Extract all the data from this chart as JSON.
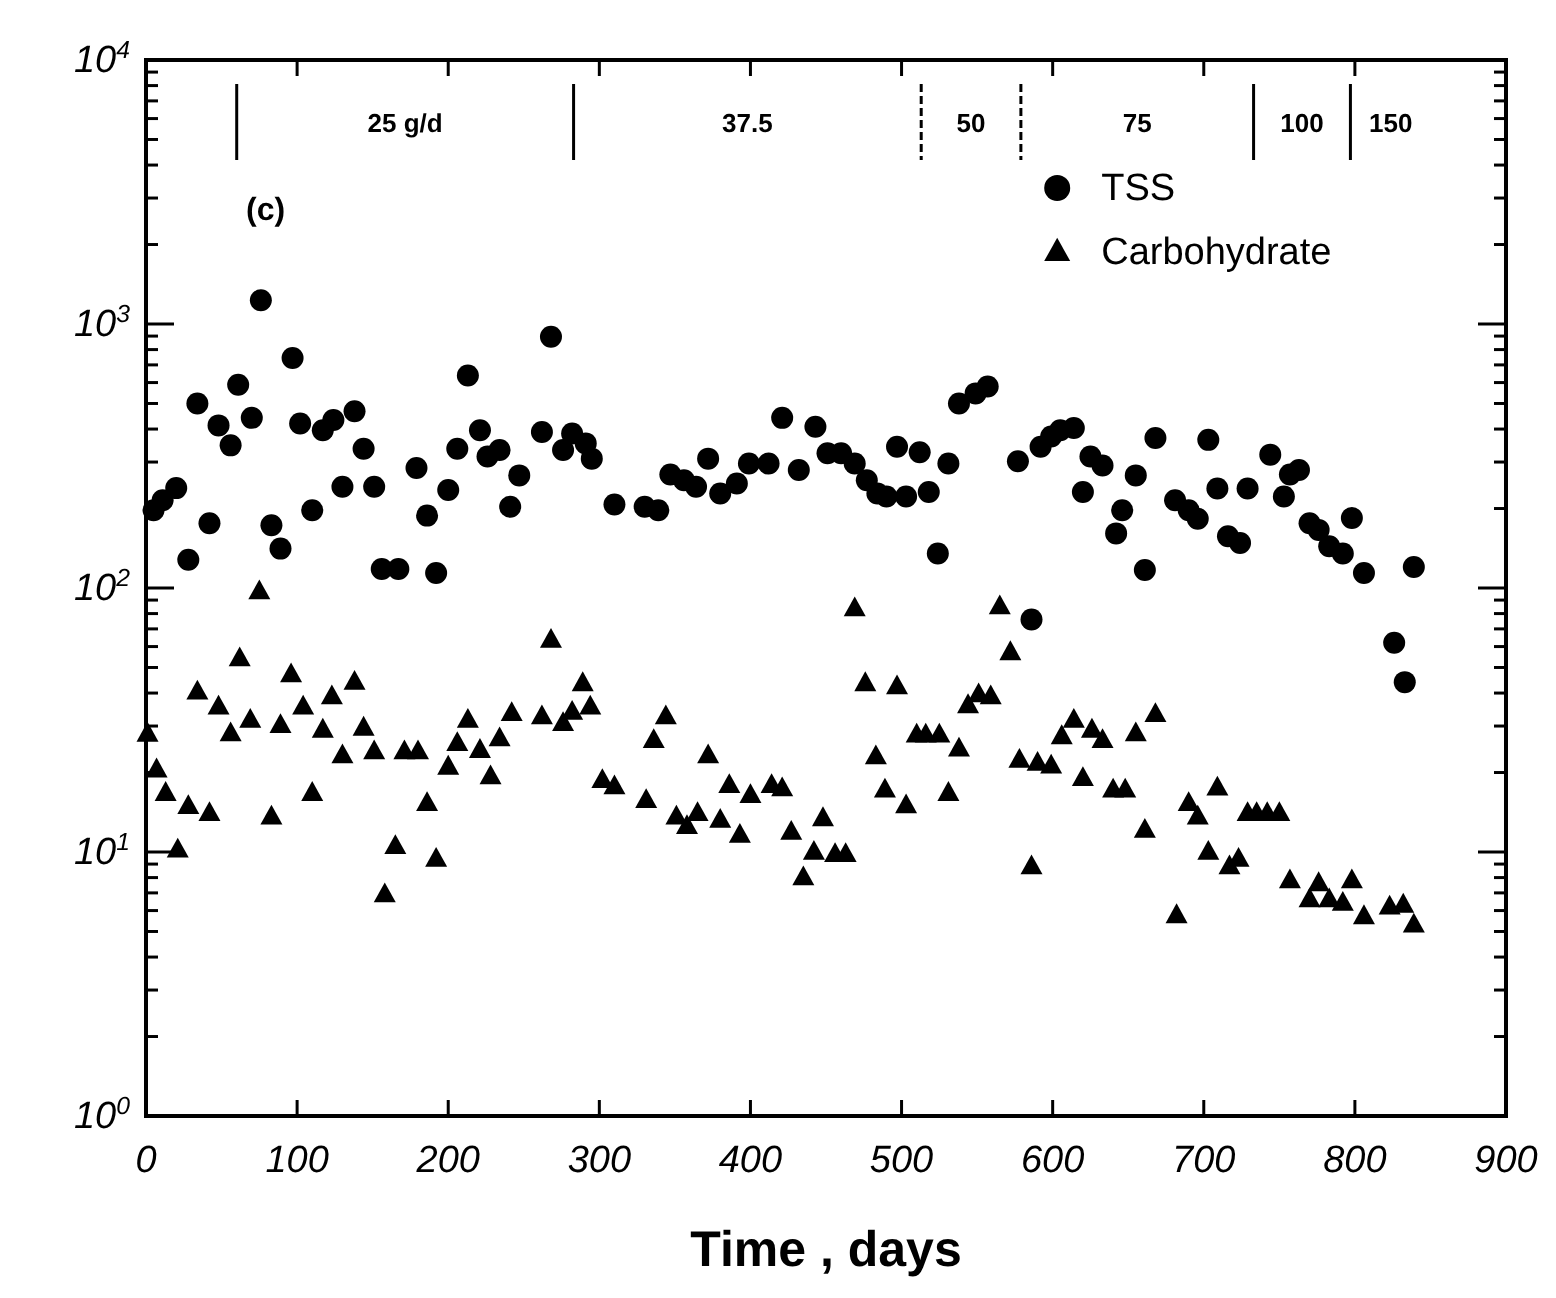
{
  "chart_data": {
    "type": "scatter",
    "xlabel": "Time , days",
    "xlim": [
      0,
      900
    ],
    "xticks": [
      0,
      100,
      200,
      300,
      400,
      500,
      600,
      700,
      800,
      900
    ],
    "ylim": [
      1,
      10000
    ],
    "yticks": [
      {
        "value": 1,
        "label": "10$^{0}$"
      },
      {
        "value": 10,
        "label": "10$^{1}$"
      },
      {
        "value": 100,
        "label": "10$^{2}$"
      },
      {
        "value": 1000,
        "label": "10$^{3}$"
      },
      {
        "value": 10000,
        "label": "10$^{4}$"
      }
    ],
    "log": "y",
    "grid": false,
    "legend": "top right",
    "annotations": [
      "(c)",
      "25 g/d",
      "37.5",
      "50",
      "75",
      "100",
      "150"
    ],
    "series": [
      {
        "name": "TSS",
        "color": "#000000",
        "marker": "circle",
        "x": [
          5,
          11,
          20,
          28,
          34,
          42,
          48,
          56,
          61,
          70,
          76,
          83,
          89,
          97,
          102,
          110,
          117,
          124,
          130,
          138,
          144,
          151,
          156,
          167,
          179,
          186,
          192,
          200,
          206,
          213,
          221,
          226,
          234,
          241,
          247,
          262,
          268,
          276,
          282,
          291,
          295,
          310,
          330,
          339,
          347,
          356,
          364,
          372,
          380,
          391,
          399,
          412,
          421,
          432,
          443,
          451,
          460,
          469,
          477,
          484,
          490,
          497,
          503,
          512,
          518,
          524,
          531,
          538,
          549,
          557,
          577,
          586,
          592,
          599,
          605,
          614,
          620,
          625,
          633,
          642,
          646,
          655,
          661,
          668,
          681,
          690,
          696,
          703,
          709,
          716,
          724,
          729,
          744,
          753,
          757,
          763,
          770,
          776,
          783,
          792,
          798,
          806,
          826,
          833,
          839
        ],
        "values": [
          197,
          215,
          239,
          128,
          500,
          176,
          413,
          347,
          589,
          441,
          1230,
          173,
          141,
          743,
          420,
          197,
          396,
          433,
          242,
          467,
          337,
          242,
          118,
          118,
          285,
          188,
          114,
          235,
          337,
          638,
          396,
          315,
          333,
          203,
          267,
          390,
          895,
          333,
          385,
          353,
          309,
          207,
          203,
          197,
          269,
          256,
          242,
          309,
          228,
          249,
          296,
          296,
          441,
          280,
          408,
          324,
          324,
          296,
          256,
          228,
          222,
          343,
          222,
          327,
          231,
          135,
          296,
          500,
          546,
          580,
          302,
          76,
          343,
          375,
          396,
          404,
          231,
          315,
          291,
          161,
          197,
          267,
          117,
          370,
          215,
          197,
          183,
          364,
          238,
          157,
          148,
          238,
          320,
          222,
          269,
          280,
          176,
          166,
          144,
          135,
          184,
          114,
          62,
          44,
          120
        ]
      },
      {
        "name": "Carbohydrate",
        "color": "#000000",
        "marker": "triangle",
        "x": [
          1,
          7,
          13,
          21,
          28,
          34,
          42,
          48,
          56,
          62,
          69,
          75,
          83,
          89,
          96,
          104,
          110,
          117,
          123,
          130,
          138,
          144,
          151,
          158,
          165,
          171,
          180,
          186,
          192,
          200,
          206,
          213,
          221,
          228,
          234,
          242,
          262,
          268,
          276,
          282,
          289,
          294,
          302,
          310,
          331,
          336,
          344,
          351,
          358,
          365,
          372,
          380,
          386,
          393,
          400,
          414,
          421,
          427,
          435,
          442,
          448,
          456,
          463,
          469,
          476,
          483,
          489,
          497,
          503,
          510,
          516,
          525,
          531,
          538,
          544,
          551,
          559,
          565,
          572,
          578,
          586,
          590,
          599,
          606,
          614,
          620,
          626,
          633,
          640,
          648,
          655,
          661,
          668,
          682,
          690,
          696,
          703,
          709,
          717,
          723,
          729,
          735,
          742,
          750,
          757,
          770,
          776,
          783,
          792,
          798,
          806,
          823,
          832,
          839
        ],
        "values": [
          28,
          20.5,
          16.7,
          10.2,
          14.9,
          40.4,
          14,
          35.5,
          28.1,
          54,
          31.6,
          97,
          13.6,
          30.2,
          47,
          35.5,
          16.7,
          29,
          38.8,
          23.2,
          44,
          29.5,
          24,
          6.9,
          10.5,
          24,
          24,
          15.3,
          9.4,
          21,
          25.8,
          31.6,
          24.3,
          19.3,
          26.9,
          33.5,
          32.6,
          63.5,
          30.7,
          33.9,
          43.5,
          35.5,
          18.7,
          17.7,
          15.7,
          26.5,
          32.6,
          13.6,
          12.5,
          14,
          23.2,
          13.2,
          17.9,
          11.6,
          16.4,
          17.9,
          17.4,
          11.9,
          8,
          10,
          13.4,
          9.8,
          9.8,
          83.5,
          43.5,
          23,
          17.2,
          42.3,
          15,
          27.8,
          27.8,
          27.8,
          16.7,
          24.6,
          35.9,
          39.5,
          38.8,
          85,
          57,
          22.3,
          8.8,
          21.7,
          21.2,
          27.4,
          31.6,
          19,
          29,
          26.5,
          17.2,
          17.2,
          28.1,
          12.1,
          33.2,
          5.75,
          15.3,
          13.6,
          10,
          17.5,
          8.8,
          9.4,
          14,
          14,
          14,
          14,
          7.8,
          6.6,
          7.6,
          6.6,
          6.4,
          7.8,
          5.7,
          6.2,
          6.3,
          5.3
        ]
      }
    ]
  }
}
